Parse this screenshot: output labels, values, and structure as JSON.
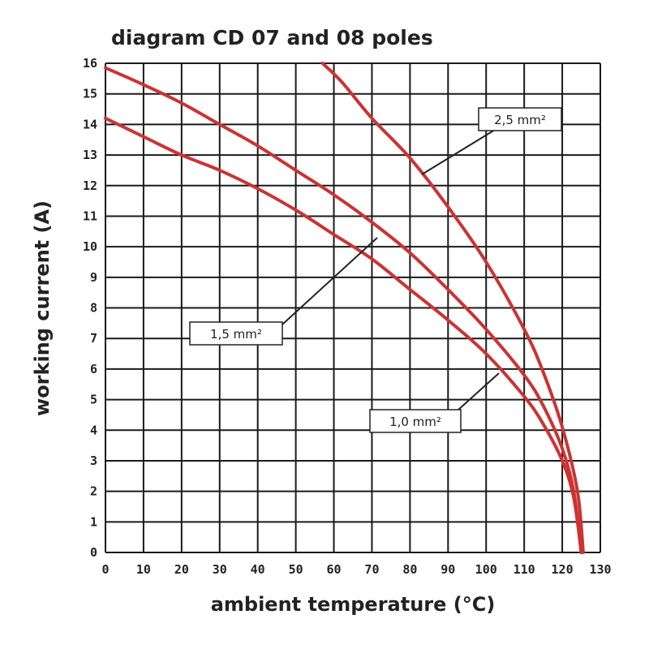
{
  "chart_data": {
    "type": "line",
    "title": "diagram CD 07 and 08 poles",
    "xlabel": "ambient temperature (°C)",
    "ylabel": "working current (A)",
    "xlim": [
      0,
      130
    ],
    "ylim": [
      0,
      16
    ],
    "x_ticks": [
      "0",
      "10",
      "20",
      "30",
      "40",
      "50",
      "60",
      "70",
      "80",
      "90",
      "100",
      "110",
      "120",
      "130"
    ],
    "y_ticks": [
      "0",
      "1",
      "2",
      "3",
      "4",
      "5",
      "6",
      "7",
      "8",
      "9",
      "10",
      "11",
      "12",
      "13",
      "14",
      "15",
      "16"
    ],
    "grid": true,
    "line_color": "#cc3333",
    "series": [
      {
        "name": "1,0 mm²",
        "x": [
          0,
          10,
          20,
          30,
          40,
          50,
          60,
          70,
          80,
          90,
          100,
          110,
          115,
          120,
          123,
          125
        ],
        "y": [
          14.2,
          13.6,
          13.0,
          12.5,
          11.9,
          11.2,
          10.4,
          9.6,
          8.6,
          7.6,
          6.5,
          5.1,
          4.2,
          3.0,
          1.8,
          0
        ]
      },
      {
        "name": "1,5 mm²",
        "x": [
          0,
          10,
          20,
          30,
          40,
          50,
          60,
          70,
          80,
          90,
          100,
          110,
          115,
          120,
          123,
          125
        ],
        "y": [
          15.85,
          15.3,
          14.7,
          14.0,
          13.3,
          12.5,
          11.7,
          10.8,
          9.8,
          8.6,
          7.3,
          5.8,
          4.8,
          3.4,
          2.0,
          0
        ]
      },
      {
        "name": "2,5 mm²",
        "x": [
          57,
          62,
          70,
          80,
          90,
          100,
          110,
          115,
          120,
          124,
          125.5
        ],
        "y": [
          16,
          15.4,
          14.2,
          12.9,
          11.3,
          9.5,
          7.3,
          5.9,
          4.1,
          2.0,
          0
        ]
      }
    ],
    "annotations": [
      "2,5 mm²",
      "1,5 mm²",
      "1,0 mm²"
    ]
  }
}
